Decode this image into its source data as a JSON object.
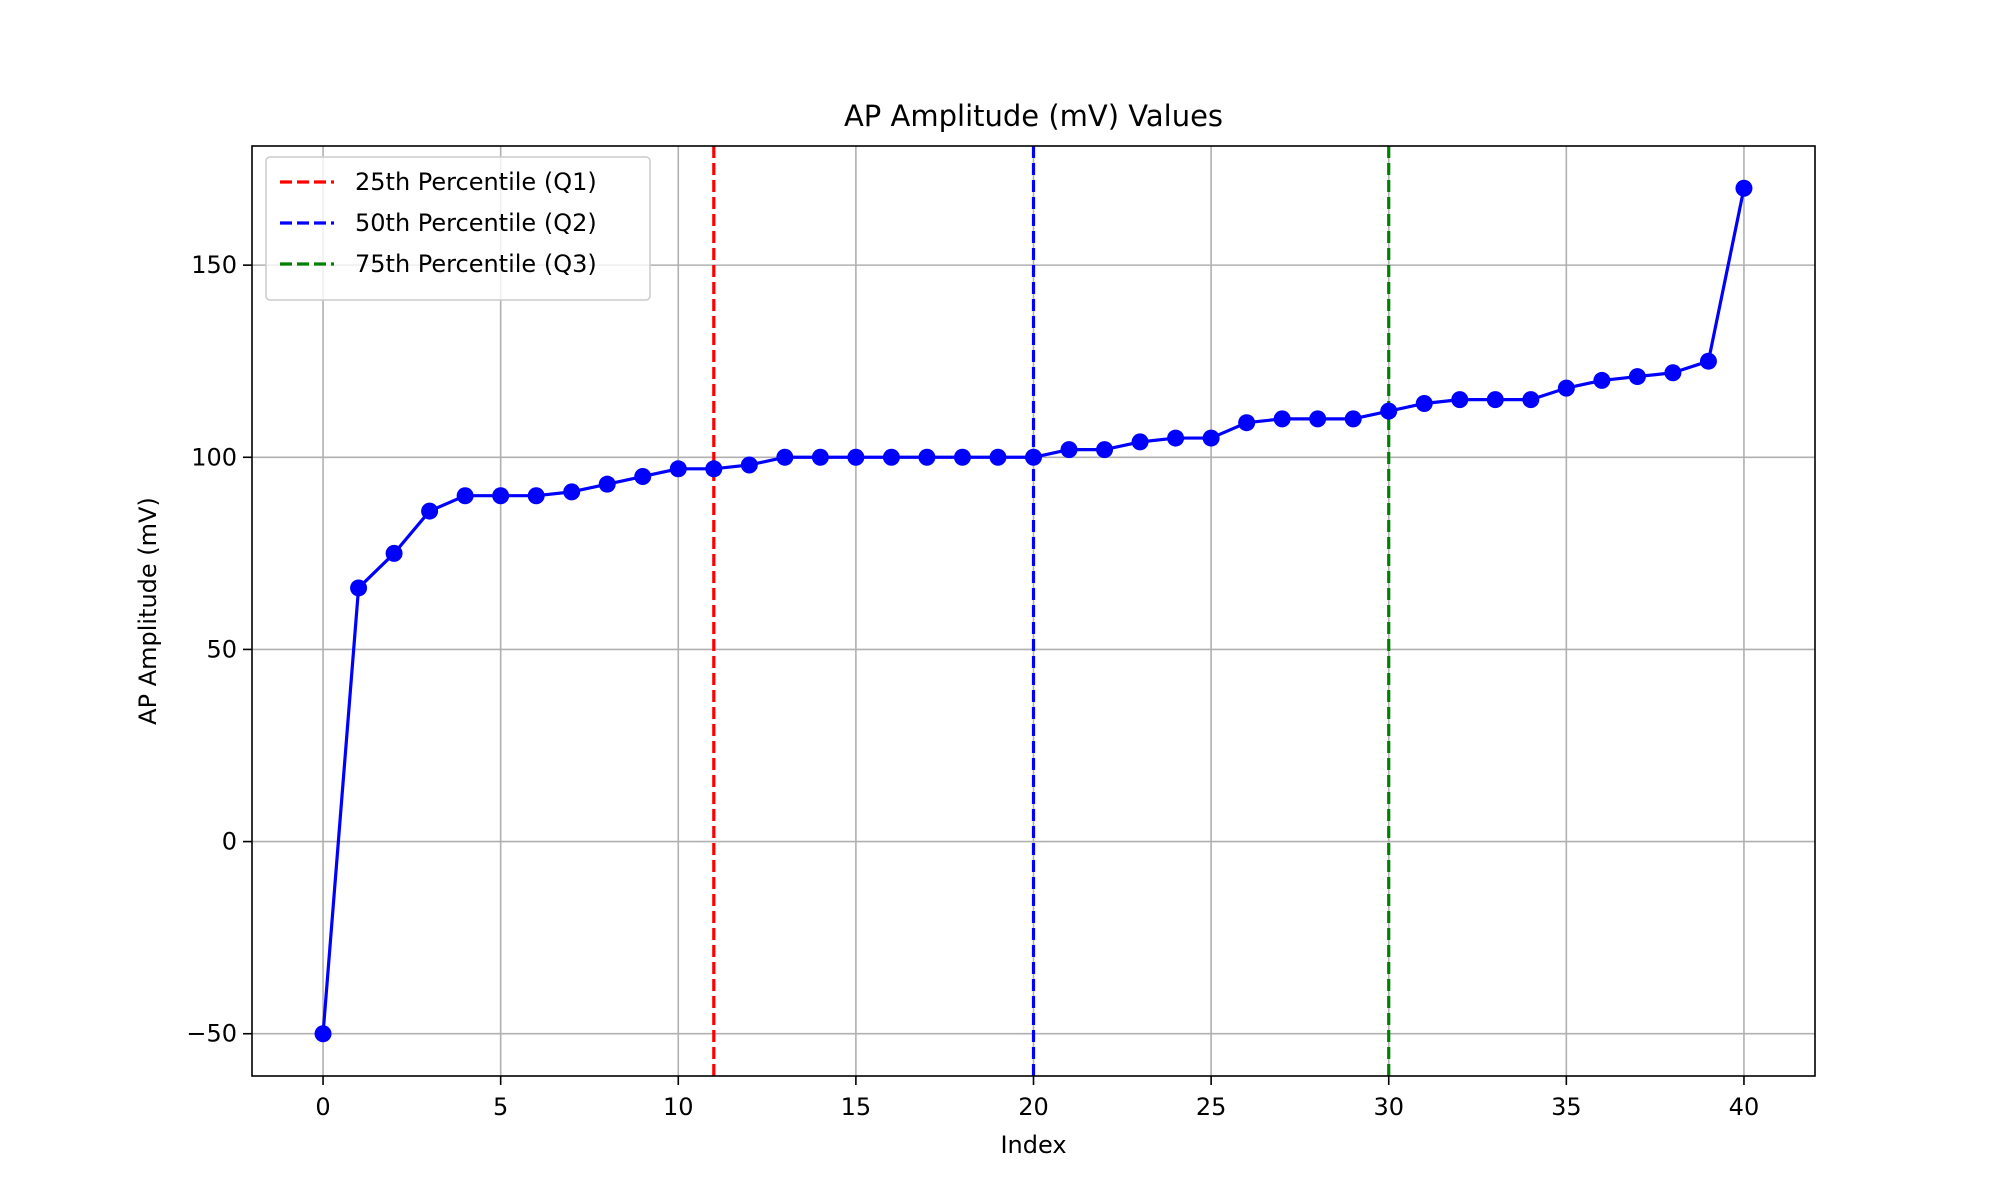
{
  "chart_data": {
    "type": "line",
    "title": "AP Amplitude (mV) Values",
    "xlabel": "Index",
    "ylabel": "AP Amplitude (mV)",
    "xlim": [
      -2,
      42
    ],
    "ylim": [
      -61,
      181
    ],
    "xticks": [
      0,
      5,
      10,
      15,
      20,
      25,
      30,
      35,
      40
    ],
    "yticks": [
      -50,
      0,
      50,
      100,
      150
    ],
    "grid": true,
    "legend_position": "upper-left",
    "series": [
      {
        "color": "#0000ff",
        "marker": "circle",
        "x": [
          0,
          1,
          2,
          3,
          4,
          5,
          6,
          7,
          8,
          9,
          10,
          11,
          12,
          13,
          14,
          15,
          16,
          17,
          18,
          19,
          20,
          21,
          22,
          23,
          24,
          25,
          26,
          27,
          28,
          29,
          30,
          31,
          32,
          33,
          34,
          35,
          36,
          37,
          38,
          39,
          40
        ],
        "values": [
          -50,
          66,
          75,
          86,
          90,
          90,
          90,
          91,
          93,
          95,
          97,
          97,
          98,
          100,
          100,
          100,
          100,
          100,
          100,
          100,
          100,
          102,
          102,
          104,
          105,
          105,
          109,
          110,
          110,
          110,
          112,
          114,
          115,
          115,
          115,
          118,
          120,
          121,
          122,
          125,
          170
        ]
      }
    ],
    "vlines": [
      {
        "name": "25th Percentile (Q1)",
        "x": 11,
        "color": "#ff0000",
        "style": "dashed"
      },
      {
        "name": "50th Percentile (Q2)",
        "x": 20,
        "color": "#0000ff",
        "style": "dashed"
      },
      {
        "name": "75th Percentile (Q3)",
        "x": 30,
        "color": "#008000",
        "style": "dashed"
      }
    ]
  }
}
